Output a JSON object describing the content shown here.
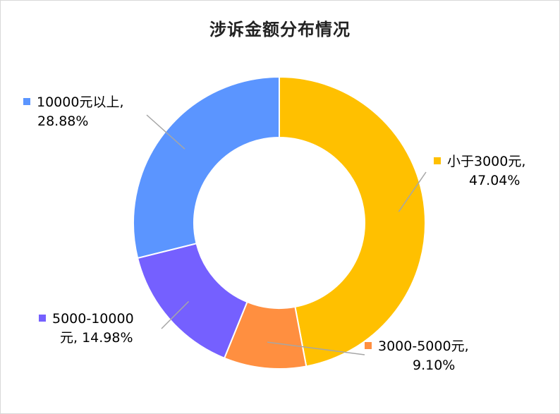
{
  "chart_data": {
    "type": "pie",
    "title": "涉诉金额分布情况",
    "slices": [
      {
        "name": "小于3000元",
        "value": 47.04,
        "value_label": "47.04%",
        "color": "#FFC000"
      },
      {
        "name": "3000-5000元",
        "value": 9.1,
        "value_label": "9.10%",
        "color": "#FF8F40"
      },
      {
        "name": "5000-10000元",
        "value": 14.98,
        "value_label": "14.98%",
        "color": "#7560FF"
      },
      {
        "name": "10000元以上",
        "value": 28.88,
        "value_label": "28.88%",
        "color": "#5B95FF"
      }
    ],
    "labels": {
      "s0_line1": "小于3000元,",
      "s0_line2": "47.04%",
      "s1_line1": "3000-5000元,",
      "s1_line2": "9.10%",
      "s2_line1": "5000-10000",
      "s2_line2": "元, 14.98%",
      "s3_line1": "10000元以上,",
      "s3_line2": "28.88%"
    },
    "legend": "none"
  }
}
